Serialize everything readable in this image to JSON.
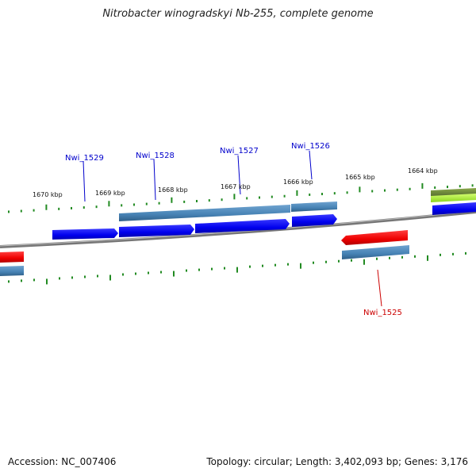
{
  "title": "Nitrobacter winogradskyi Nb-255, complete genome",
  "footer": {
    "accession": "Accession: NC_007406",
    "summary": "Topology: circular; Length: 3,402,093 bp; Genes: 3,176"
  },
  "colors": {
    "backbone": "#808080",
    "tick": "#228b22",
    "gene_blue": "#0000ee",
    "gene_steel": "#4682b4",
    "gene_red": "#ee0000",
    "gene_olive": "#6b8e23",
    "gene_lime": "#adff2f",
    "label_blue": "#0000cc",
    "label_red": "#cc0000"
  },
  "scale_labels": [
    {
      "text": "1670 kbp"
    },
    {
      "text": "1669 kbp"
    },
    {
      "text": "1668 kbp"
    },
    {
      "text": "1667 kbp"
    },
    {
      "text": "1666 kbp"
    },
    {
      "text": "1665 kbp"
    },
    {
      "text": "1664 kbp"
    }
  ],
  "gene_labels": [
    {
      "text": "Nwi_1529",
      "color": "#0000cc"
    },
    {
      "text": "Nwi_1528",
      "color": "#0000cc"
    },
    {
      "text": "Nwi_1527",
      "color": "#0000cc"
    },
    {
      "text": "Nwi_1526",
      "color": "#0000cc"
    },
    {
      "text": "Nwi_1525",
      "color": "#cc0000"
    }
  ]
}
